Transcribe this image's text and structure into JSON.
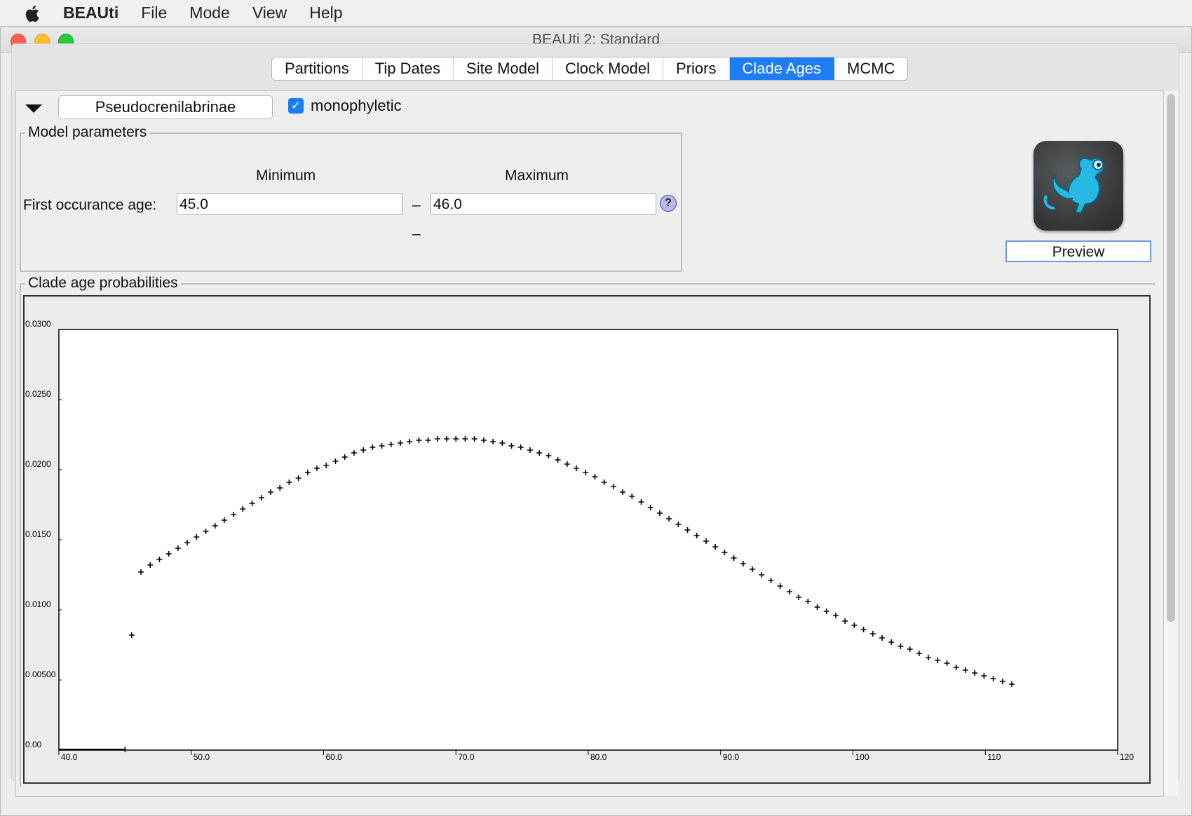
{
  "menubar": {
    "app_name": "BEAUti",
    "items": [
      "File",
      "Mode",
      "View",
      "Help"
    ]
  },
  "window": {
    "title": "BEAUti 2: Standard"
  },
  "tabs": [
    {
      "label": "Partitions",
      "active": false
    },
    {
      "label": "Tip Dates",
      "active": false
    },
    {
      "label": "Site Model",
      "active": false
    },
    {
      "label": "Clock Model",
      "active": false
    },
    {
      "label": "Priors",
      "active": false
    },
    {
      "label": "Clade Ages",
      "active": true
    },
    {
      "label": "MCMC",
      "active": false
    }
  ],
  "clade": {
    "name": "Pseudocrenilabrinae",
    "monophyletic_label": "monophyletic",
    "monophyletic_checked": true
  },
  "model_parameters": {
    "legend": "Model parameters",
    "minimum_header": "Minimum",
    "maximum_header": "Maximum",
    "row_label": "First occurance age:",
    "minimum_value": "45.0",
    "maximum_value": "46.0",
    "separator": "–",
    "separator2": "–",
    "help_icon": "?"
  },
  "preview": {
    "icon": "beast-mouse-icon",
    "button_label": "Preview"
  },
  "clade_age_probabilities": {
    "legend": "Clade age probabilities"
  },
  "colors": {
    "accent": "#1e7cf5",
    "plot_bg": "#ffffff",
    "marker": "#000000"
  },
  "chart_data": {
    "type": "scatter",
    "marker": "+",
    "xlim": [
      40,
      120
    ],
    "ylim": [
      0,
      0.03
    ],
    "x_ticks": [
      "40.0",
      "50.0",
      "60.0",
      "70.0",
      "80.0",
      "90.0",
      "100",
      "110",
      "120"
    ],
    "y_ticks": [
      "0.00",
      "0.00500",
      "0.0100",
      "0.0150",
      "0.0200",
      "0.0250",
      "0.0300"
    ],
    "zero_segment_x": [
      40,
      45
    ],
    "x": [
      45.5,
      46.2,
      46.9,
      47.6,
      48.3,
      49.0,
      49.7,
      50.4,
      51.1,
      51.8,
      52.5,
      53.2,
      53.9,
      54.6,
      55.3,
      56.0,
      56.7,
      57.4,
      58.1,
      58.8,
      59.5,
      60.2,
      60.9,
      61.6,
      62.3,
      63.0,
      63.7,
      64.4,
      65.1,
      65.8,
      66.5,
      67.2,
      67.9,
      68.6,
      69.3,
      70.0,
      70.7,
      71.4,
      72.1,
      72.8,
      73.5,
      74.2,
      74.9,
      75.6,
      76.3,
      77.0,
      77.7,
      78.4,
      79.1,
      79.8,
      80.5,
      81.2,
      81.9,
      82.6,
      83.3,
      84.0,
      84.7,
      85.4,
      86.1,
      86.8,
      87.5,
      88.2,
      88.9,
      89.6,
      90.3,
      91.0,
      91.7,
      92.4,
      93.1,
      93.8,
      94.5,
      95.2,
      95.9,
      96.6,
      97.3,
      98.0,
      98.7,
      99.4,
      100.1,
      100.8,
      101.5,
      102.2,
      102.9,
      103.6,
      104.3,
      105.0,
      105.7,
      106.4,
      107.1,
      107.8,
      108.5,
      109.2,
      109.9,
      110.6,
      111.3,
      112.0
    ],
    "y": [
      0.0082,
      0.0127,
      0.0132,
      0.0136,
      0.014,
      0.0144,
      0.0148,
      0.0152,
      0.0156,
      0.016,
      0.0164,
      0.0168,
      0.0172,
      0.0176,
      0.018,
      0.0184,
      0.0187,
      0.0191,
      0.0194,
      0.0198,
      0.0201,
      0.0203,
      0.0206,
      0.0209,
      0.0212,
      0.0214,
      0.0216,
      0.0217,
      0.0218,
      0.0219,
      0.022,
      0.0221,
      0.0221,
      0.0222,
      0.0222,
      0.0222,
      0.0222,
      0.0222,
      0.0221,
      0.022,
      0.0219,
      0.0217,
      0.0216,
      0.0214,
      0.0212,
      0.021,
      0.0207,
      0.0204,
      0.0201,
      0.0198,
      0.0195,
      0.0191,
      0.0188,
      0.0184,
      0.0181,
      0.0177,
      0.0173,
      0.0169,
      0.0165,
      0.0161,
      0.0157,
      0.0153,
      0.0149,
      0.0145,
      0.0141,
      0.0137,
      0.0133,
      0.0129,
      0.0125,
      0.0121,
      0.0117,
      0.0113,
      0.0109,
      0.0106,
      0.0102,
      0.0099,
      0.0096,
      0.0092,
      0.0089,
      0.0086,
      0.0083,
      0.008,
      0.0077,
      0.0074,
      0.0072,
      0.0069,
      0.0066,
      0.0064,
      0.0062,
      0.0059,
      0.0057,
      0.0055,
      0.0053,
      0.0051,
      0.0049,
      0.0047
    ]
  }
}
